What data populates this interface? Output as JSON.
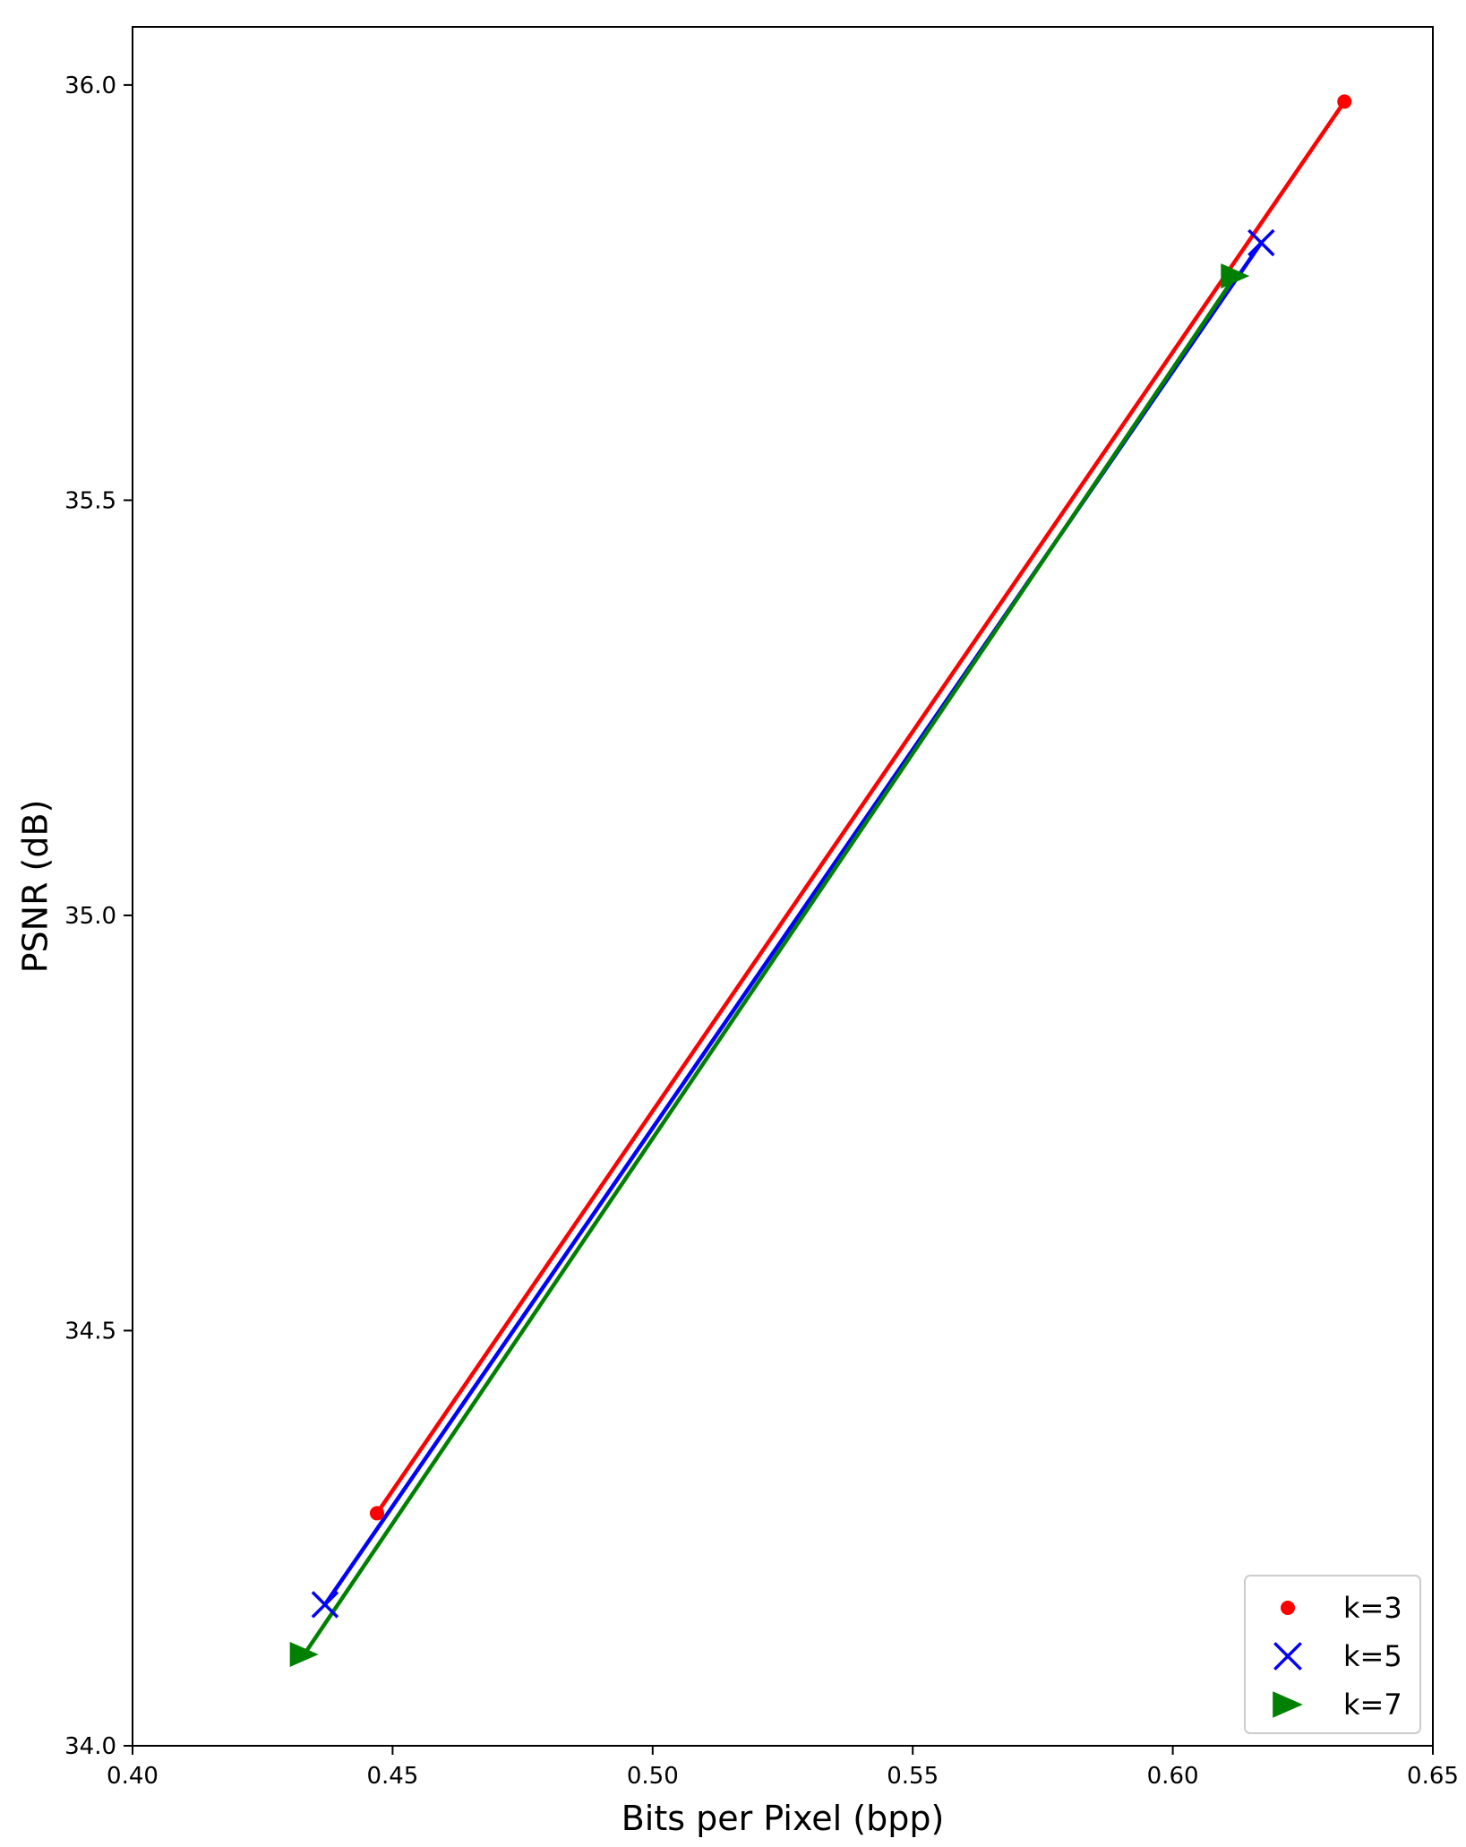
{
  "chart_data": {
    "type": "line",
    "title": "",
    "xlabel": "Bits per Pixel (bpp)",
    "ylabel": "PSNR (dB)",
    "xlim": [
      0.4,
      0.65
    ],
    "ylim": [
      34.0,
      36.07
    ],
    "x_ticks": [
      0.4,
      0.45,
      0.5,
      0.55,
      0.6,
      0.65
    ],
    "x_tick_labels": [
      "0.40",
      "0.45",
      "0.50",
      "0.55",
      "0.60",
      "0.65"
    ],
    "y_ticks": [
      34.0,
      34.5,
      35.0,
      35.5,
      36.0
    ],
    "y_tick_labels": [
      "34.0",
      "34.5",
      "35.0",
      "35.5",
      "36.0"
    ],
    "grid": false,
    "legend_position": "lower-right",
    "series": [
      {
        "name": "k=3",
        "color": "#ff0000",
        "marker": "circle",
        "x": [
          0.447,
          0.633
        ],
        "y": [
          34.28,
          35.98
        ]
      },
      {
        "name": "k=5",
        "color": "#0000ff",
        "marker": "x",
        "x": [
          0.437,
          0.617
        ],
        "y": [
          34.17,
          35.81
        ]
      },
      {
        "name": "k=7",
        "color": "#008000",
        "marker": "triangle-right",
        "x": [
          0.433,
          0.612
        ],
        "y": [
          34.11,
          35.77
        ]
      }
    ]
  }
}
